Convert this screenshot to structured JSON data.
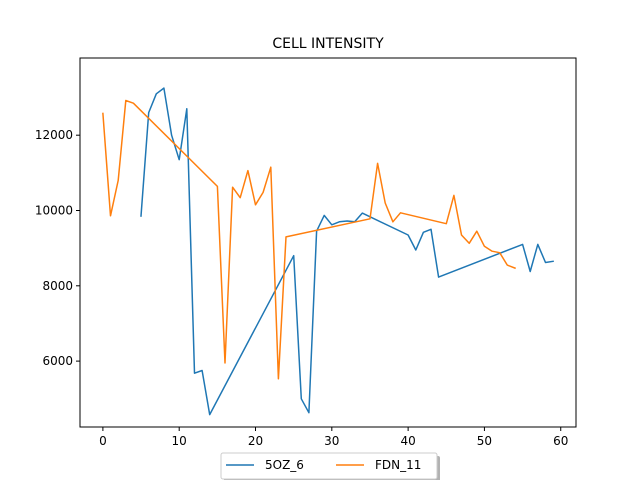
{
  "chart_data": {
    "type": "line",
    "title": "CELL INTENSITY",
    "xlabel": "",
    "ylabel": "",
    "xlim": [
      -3,
      62
    ],
    "ylim": [
      4250,
      14050
    ],
    "xticks": [
      0,
      10,
      20,
      30,
      40,
      50,
      60
    ],
    "yticks": [
      6000,
      8000,
      10000,
      12000
    ],
    "grid": false,
    "legend_position": "bottom-center",
    "series": [
      {
        "name": "5OZ_6",
        "color": "#1f77b4",
        "x": [
          5,
          6,
          7,
          8,
          9,
          10,
          11,
          12,
          13,
          14,
          25,
          26,
          27,
          28,
          29,
          30,
          31,
          32,
          33,
          34,
          40,
          41,
          42,
          43,
          44,
          55,
          56,
          57,
          58,
          59
        ],
        "y": [
          9850,
          12600,
          13100,
          13250,
          12000,
          11350,
          12700,
          5680,
          5750,
          4580,
          8800,
          5000,
          4630,
          9450,
          9870,
          9620,
          9700,
          9720,
          9700,
          9930,
          9350,
          8950,
          9420,
          9500,
          8230,
          9100,
          8380,
          9100,
          8620,
          8650
        ]
      },
      {
        "name": "FDN_11",
        "color": "#ff7f0e",
        "x": [
          0,
          1,
          2,
          3,
          4,
          15,
          16,
          17,
          18,
          19,
          20,
          21,
          22,
          23,
          24,
          35,
          36,
          37,
          38,
          39,
          45,
          46,
          47,
          48,
          49,
          50,
          51,
          52,
          53,
          54
        ],
        "y": [
          12580,
          9860,
          10800,
          12920,
          12850,
          10640,
          5950,
          10620,
          10340,
          11060,
          10150,
          10480,
          11150,
          5530,
          9300,
          9780,
          11250,
          10200,
          9700,
          9940,
          9650,
          10400,
          9350,
          9130,
          9450,
          9050,
          8920,
          8880,
          8550,
          8470
        ]
      }
    ]
  }
}
